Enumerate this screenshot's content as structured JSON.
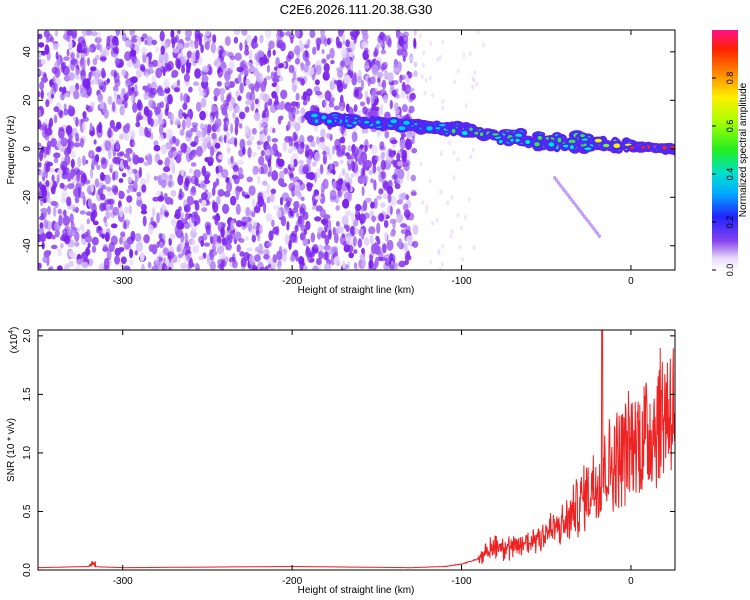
{
  "figure_title": "C2E6.2026.111.20.38.G30",
  "chart_data": [
    {
      "type": "heatmap",
      "xlabel": "Height of straight line (km)",
      "ylabel": "Frequency (Hz)",
      "xlim": [
        -350,
        26
      ],
      "ylim": [
        -50,
        49
      ],
      "xticks": [
        -300,
        -200,
        -100,
        0
      ],
      "xtick_labels": [
        "-300",
        "-200",
        "-100",
        "0"
      ],
      "yticks": [
        -40,
        -20,
        0,
        20,
        40
      ],
      "ytick_labels": [
        "-40",
        "-20",
        "0",
        "20",
        "40"
      ],
      "colorbar": {
        "label": "Normalized spectral amplitude",
        "range": [
          0,
          1
        ],
        "ticks": [
          0.0,
          0.2,
          0.4,
          0.6,
          0.8
        ],
        "tick_labels": [
          "0.0",
          "0.2",
          "0.4",
          "0.6",
          "0.8"
        ]
      },
      "noise_region_km": [
        -350,
        -127
      ],
      "signal_track": {
        "x": [
          -190,
          -160,
          -140,
          -120,
          -100,
          -80,
          -60,
          -40,
          -20,
          0,
          26
        ],
        "y": [
          13,
          11,
          10,
          9,
          8,
          6,
          4,
          3,
          2,
          1,
          0
        ]
      }
    },
    {
      "type": "line",
      "xlabel": "Height of straight line (km)",
      "ylabel": "SNR (10 * v/v)",
      "y_multiplier_label": "(x10",
      "y_multiplier_exponent": "4",
      "xlim": [
        -350,
        26
      ],
      "ylim": [
        0,
        2.05
      ],
      "xticks": [
        -300,
        -200,
        -100,
        0
      ],
      "xtick_labels": [
        "-300",
        "-200",
        "-100",
        "0"
      ],
      "yticks": [
        0.0,
        0.5,
        1.0,
        1.5,
        2.0
      ],
      "ytick_labels": [
        "0.0",
        "0.5",
        "1.0",
        "1.5",
        "2.0"
      ],
      "color": "#ee2222",
      "trend": {
        "x": [
          -350,
          -320,
          -300,
          -200,
          -130,
          -110,
          -100,
          -85,
          -80,
          -70,
          -60,
          -50,
          -40,
          -30,
          -20,
          -15,
          -10,
          0,
          10,
          20,
          26
        ],
        "y": [
          0.02,
          0.03,
          0.02,
          0.03,
          0.02,
          0.03,
          0.05,
          0.12,
          0.2,
          0.15,
          0.22,
          0.3,
          0.35,
          0.55,
          0.75,
          0.85,
          0.9,
          1.05,
          1.15,
          1.35,
          1.42
        ]
      },
      "peak": {
        "x": -17,
        "y": 2.05
      }
    }
  ]
}
